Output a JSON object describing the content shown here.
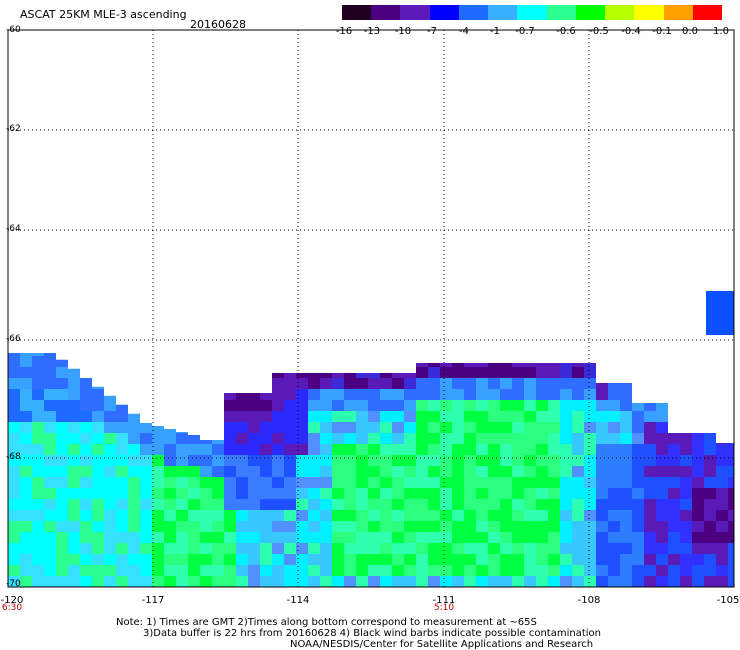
{
  "header": {
    "title": "ASCAT 25KM MLE-3 ascending",
    "date": "20160628"
  },
  "colorbar": {
    "labels": [
      "-16",
      "-13",
      "-10",
      "-7",
      "-4",
      "-1",
      "-0.7",
      "-0.6",
      "-0.5",
      "-0.4",
      "-0.1",
      "0.0",
      "1.0"
    ],
    "colors": [
      "#200020",
      "#4b0082",
      "#5a1ab8",
      "#0000ff",
      "#1e6bff",
      "#38b0ff",
      "#00ffff",
      "#2cff90",
      "#00ff00",
      "#b8ff00",
      "#ffff00",
      "#ffa000",
      "#ff0000"
    ]
  },
  "axes": {
    "lat_labels": [
      "-60",
      "-62",
      "-64",
      "-66",
      "-68",
      "-70"
    ],
    "lon_labels": [
      "-120",
      "-117",
      "-114",
      "-111",
      "-108",
      "-105"
    ],
    "time_labels": [
      "6:30",
      "5:10"
    ]
  },
  "notes": {
    "line1": "Note: 1) Times are GMT 2)Times along bottom correspond to measurement at ~65S",
    "line2": "3)Data buffer is 22 hrs from 20160628 4) Black wind barbs indicate possible contamination",
    "line3": "NOAA/NESDIS/Center for Satellite Applications and Research"
  }
}
